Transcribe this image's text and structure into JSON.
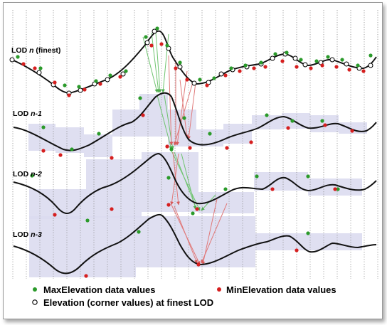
{
  "lod_labels": [
    {
      "prefix": "LOD ",
      "italic": "n",
      "suffix": " (finest)"
    },
    {
      "prefix": "LOD ",
      "italic": "n-1",
      "suffix": ""
    },
    {
      "prefix": "LOD ",
      "italic": "n-2",
      "suffix": ""
    },
    {
      "prefix": "LOD ",
      "italic": "n-3",
      "suffix": ""
    }
  ],
  "legend": {
    "max_label": "MaxElevation data values",
    "min_label": "MinElevation data values",
    "corner_label": "Elevation (corner values) at finest LOD"
  },
  "colors": {
    "max": "#2a9a2a",
    "min": "#d61f1f",
    "band": "#dcdcf0",
    "arrow_green": "#6fc46f",
    "arrow_red": "#e07a7a",
    "grid": "#8a8a8a"
  }
}
